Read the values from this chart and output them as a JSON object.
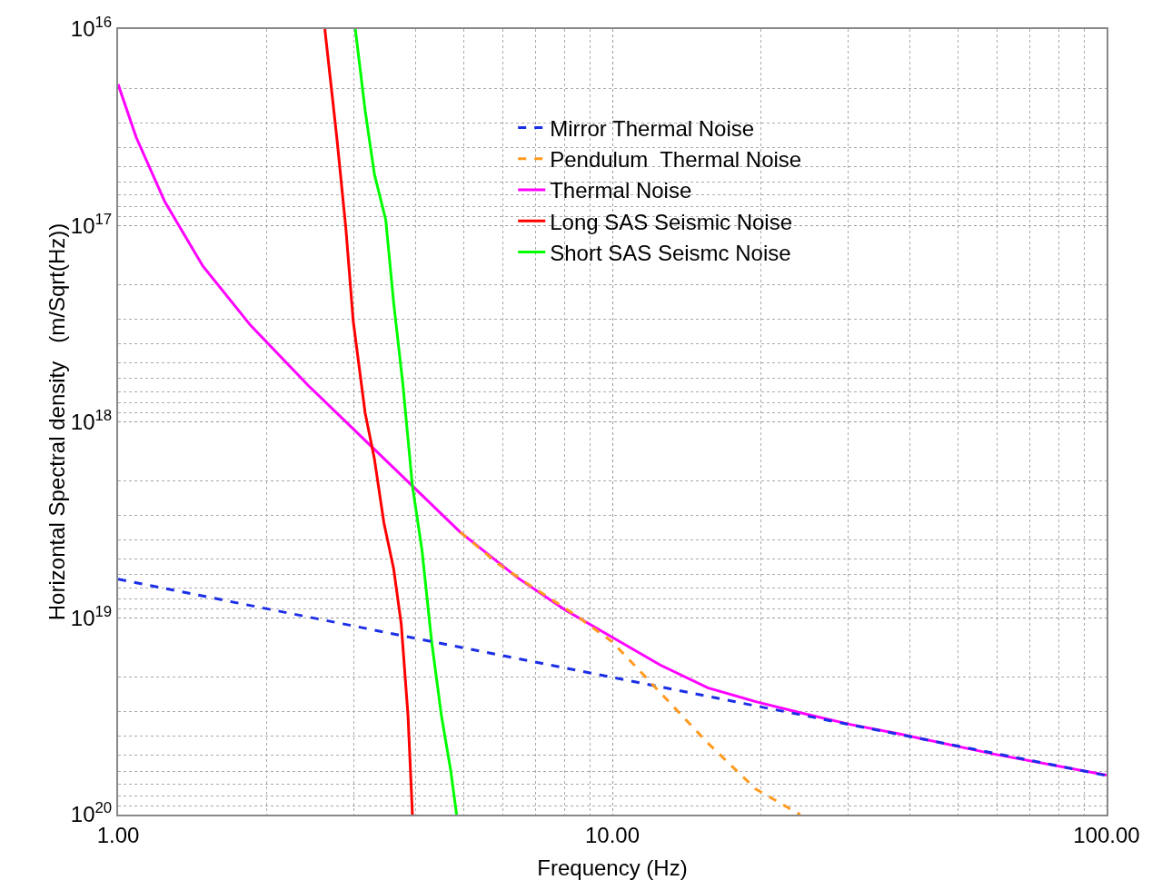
{
  "chart_data": {
    "type": "line",
    "xlabel": "Frequency (Hz)",
    "ylabel": "Horizontal Spectral density   (m/Sqrt(Hz))",
    "log": "xy",
    "grid": true,
    "legend": "top",
    "marker": "none",
    "xlim": [
      1,
      100
    ],
    "xticks": [
      {
        "value": 1,
        "label": "1.00"
      },
      {
        "value": 10,
        "label": "10.00"
      },
      {
        "value": 100,
        "label": "100.00"
      }
    ],
    "ylim": [
      1e+20,
      1e+16
    ],
    "yticks": [
      {
        "value": 1e+20,
        "label": "10$^{20}$"
      },
      {
        "value": 1e+19,
        "label": "10$^{19}$"
      },
      {
        "value": 1e+18,
        "label": "10$^{18}$"
      },
      {
        "value": 1e+17,
        "label": "10$^{17}$"
      },
      {
        "value": 1e+16,
        "label": "10$^{16}$"
      }
    ],
    "series": [
      {
        "name": "Mirror Thermal Noise",
        "color": "#1a2ee6",
        "line_style": "dashed",
        "x": [
          1,
          10,
          100
        ],
        "values": [
          6.33e+18,
          2e+19,
          6.33e+19
        ]
      },
      {
        "name": "Pendulum  Thermal Noise",
        "color": "#ff9a1e",
        "line_style": "dashed",
        "x": [
          4.92,
          5.88,
          7.03,
          8.39,
          10,
          12.5,
          15.6,
          19.5,
          24.0
        ],
        "values": [
          3.64e+18,
          5.3e+18,
          7.16e+18,
          9.57e+18,
          1.32e+19,
          2.39e+19,
          4.32e+19,
          7.4e+19,
          1e+20
        ]
      },
      {
        "name": "Thermal Noise",
        "color": "#ff00ff",
        "line_style": "solid",
        "x": [
          1,
          1.088,
          1.243,
          1.484,
          1.854,
          2.42,
          3.23,
          3.94,
          4.92,
          6.43,
          8.03,
          10,
          12.5,
          15.6,
          19.5,
          24.4,
          30.4,
          38.0,
          59.2,
          100
        ],
        "values": [
          1.91e+16,
          3.56e+16,
          7.57e+16,
          1.61e+17,
          3.23e+17,
          6.5e+17,
          1.31e+18,
          2.12e+18,
          3.64e+18,
          6.22e+18,
          9.08e+18,
          1.25e+19,
          1.73e+19,
          2.26e+19,
          2.66e+19,
          3.06e+19,
          3.48e+19,
          3.88e+19,
          4.92e+19,
          6.3e+19
        ]
      },
      {
        "name": "Long SAS Seismic Noise",
        "color": "#ff0000",
        "line_style": "solid",
        "x": [
          2.62,
          2.77,
          2.89,
          2.99,
          3.16,
          3.3,
          3.45,
          3.61,
          3.74,
          3.86,
          3.94
        ],
        "values": [
          1e+16,
          3.56e+16,
          1.04e+17,
          3.06e+17,
          8.97e+17,
          1.54e+18,
          3.27e+18,
          5.6e+18,
          1.07e+19,
          3.13e+19,
          1e+20
        ]
      },
      {
        "name": "Short SAS Seismc Noise",
        "color": "#00ff00",
        "line_style": "solid",
        "x": [
          3.02,
          3.16,
          3.3,
          3.48,
          3.61,
          3.77,
          3.94,
          4.12,
          4.31,
          4.51,
          4.71,
          4.84
        ],
        "values": [
          1e+16,
          2.58e+16,
          5.47e+16,
          9.38e+16,
          2.47e+17,
          6.5e+17,
          2.12e+18,
          4.51e+18,
          1.32e+19,
          3.13e+19,
          5.97e+19,
          1e+20
        ]
      }
    ]
  }
}
